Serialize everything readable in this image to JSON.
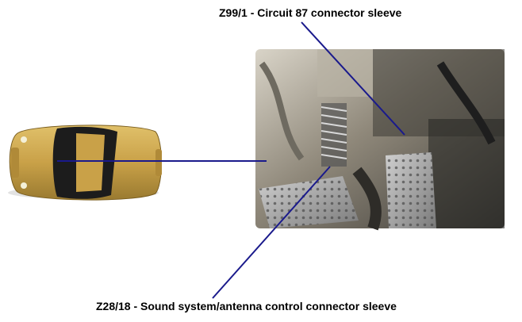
{
  "callouts": {
    "top_label": "Z99/1 - Circuit 87 connector sleeve",
    "bottom_label": "Z28/18 - Sound system/antenna control connector sleeve"
  },
  "colors": {
    "leader_line": "#1a1a8c",
    "car_body": "#c9a148",
    "car_glass": "#1c1c1c",
    "photo_background": "#8a8476",
    "pedal_metal": "#a9a9a9",
    "background": "#ffffff"
  },
  "icons": {
    "vehicle": "car-top-view-icon"
  }
}
